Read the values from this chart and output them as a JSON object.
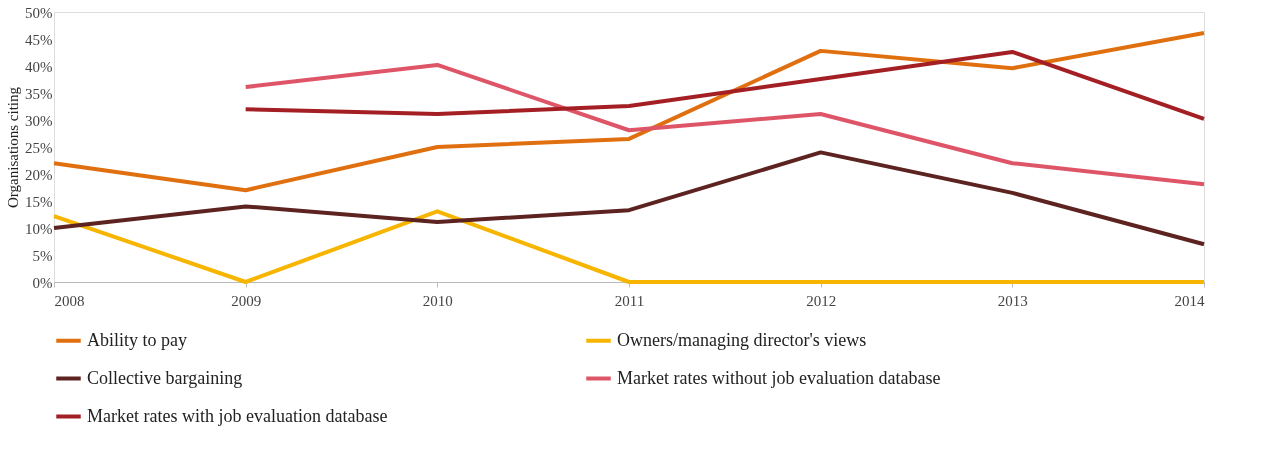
{
  "chart_data": {
    "type": "line",
    "ylabel": "Organisations citing",
    "categories": [
      "2008",
      "2009",
      "2010",
      "2011",
      "2012",
      "2013",
      "2014"
    ],
    "ylim": [
      0,
      50
    ],
    "yticks": [
      {
        "value": 0,
        "label": "0%"
      },
      {
        "value": 5,
        "label": "5%"
      },
      {
        "value": 10,
        "label": "10%"
      },
      {
        "value": 15,
        "label": "15%"
      },
      {
        "value": 20,
        "label": "20%"
      },
      {
        "value": 25,
        "label": "25%"
      },
      {
        "value": 30,
        "label": "30%"
      },
      {
        "value": 35,
        "label": "35%"
      },
      {
        "value": 40,
        "label": "40%"
      },
      {
        "value": 45,
        "label": "45%"
      },
      {
        "value": 50,
        "label": "50%"
      }
    ],
    "grid": false,
    "legend": "bottom",
    "marker": "none",
    "line_style": "solid",
    "series": [
      {
        "name": "Ability to pay",
        "color": "#e0700f",
        "values": [
          22,
          17,
          25,
          26.5,
          42.8,
          39.6,
          46.1
        ]
      },
      {
        "name": "Owners/managing director's views",
        "color": "#f7b500",
        "values": [
          12.2,
          0,
          13.1,
          0,
          0,
          0,
          0
        ]
      },
      {
        "name": "Collective bargaining",
        "color": "#5c2320",
        "values": [
          10,
          14,
          11.1,
          13.3,
          24,
          16.5,
          7
        ]
      },
      {
        "name": "Market rates without job evaluation database",
        "color": "#de5568",
        "values": [
          null,
          36.1,
          40.2,
          28.1,
          31.1,
          22,
          18.1
        ]
      },
      {
        "name": "Market rates with job evaluation database",
        "color": "#a31f24",
        "values": [
          null,
          32,
          31.1,
          32.6,
          37.6,
          42.6,
          30.2
        ]
      }
    ]
  }
}
